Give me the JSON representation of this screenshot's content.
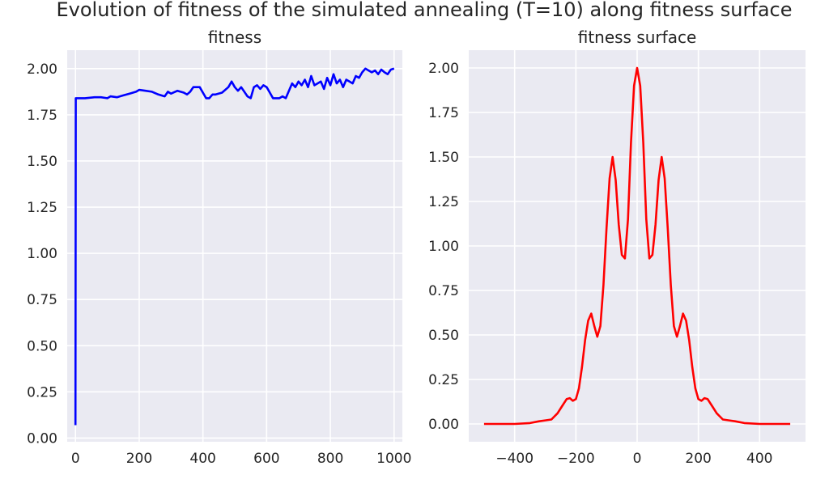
{
  "figure": {
    "suptitle": "Evolution of fitness of the simulated annealing (T=10) along fitness surface"
  },
  "chart_data": [
    {
      "type": "line",
      "title": "fitness",
      "xlabel": "",
      "ylabel": "",
      "xlim": [
        -26,
        1026
      ],
      "ylim": [
        -0.02,
        2.1
      ],
      "xticks": [
        0,
        200,
        400,
        600,
        800,
        1000
      ],
      "xtick_labels": [
        "0",
        "200",
        "400",
        "600",
        "800",
        "1000"
      ],
      "yticks": [
        0.0,
        0.25,
        0.5,
        0.75,
        1.0,
        1.25,
        1.5,
        1.75,
        2.0
      ],
      "ytick_labels": [
        "0.00",
        "0.25",
        "0.50",
        "0.75",
        "1.00",
        "1.25",
        "1.50",
        "1.75",
        "2.00"
      ],
      "grid": true,
      "series": [
        {
          "color": "#0000ff",
          "x": [
            0,
            1,
            10,
            30,
            60,
            80,
            100,
            110,
            130,
            150,
            170,
            190,
            200,
            220,
            240,
            260,
            280,
            290,
            300,
            320,
            340,
            350,
            360,
            370,
            390,
            410,
            420,
            430,
            440,
            460,
            480,
            490,
            500,
            510,
            520,
            540,
            550,
            560,
            570,
            580,
            590,
            600,
            610,
            620,
            640,
            650,
            660,
            670,
            680,
            690,
            700,
            710,
            720,
            730,
            740,
            750,
            760,
            770,
            780,
            790,
            800,
            810,
            820,
            830,
            840,
            850,
            860,
            870,
            880,
            890,
            900,
            910,
            920,
            930,
            940,
            950,
            960,
            970,
            980,
            990,
            1000
          ],
          "y": [
            0.07,
            1.84,
            1.84,
            1.84,
            1.845,
            1.845,
            1.84,
            1.85,
            1.845,
            1.855,
            1.865,
            1.875,
            1.885,
            1.88,
            1.875,
            1.86,
            1.85,
            1.875,
            1.865,
            1.88,
            1.87,
            1.86,
            1.875,
            1.9,
            1.9,
            1.84,
            1.84,
            1.86,
            1.86,
            1.87,
            1.9,
            1.93,
            1.9,
            1.88,
            1.9,
            1.85,
            1.84,
            1.9,
            1.91,
            1.89,
            1.91,
            1.9,
            1.87,
            1.84,
            1.84,
            1.85,
            1.84,
            1.88,
            1.92,
            1.9,
            1.93,
            1.91,
            1.94,
            1.9,
            1.96,
            1.91,
            1.92,
            1.93,
            1.89,
            1.95,
            1.91,
            1.97,
            1.92,
            1.94,
            1.9,
            1.94,
            1.93,
            1.92,
            1.96,
            1.95,
            1.98,
            2.0,
            1.99,
            1.98,
            1.99,
            1.97,
            1.995,
            1.98,
            1.97,
            1.995,
            2.0
          ]
        }
      ]
    },
    {
      "type": "line",
      "title": "fitness surface",
      "xlabel": "",
      "ylabel": "",
      "xlim": [
        -550,
        550
      ],
      "ylim": [
        -0.1,
        2.1
      ],
      "xticks": [
        -400,
        -200,
        0,
        200,
        400
      ],
      "xtick_labels": [
        "−400",
        "−200",
        "0",
        "200",
        "400"
      ],
      "yticks": [
        0.0,
        0.25,
        0.5,
        0.75,
        1.0,
        1.25,
        1.5,
        1.75,
        2.0
      ],
      "ytick_labels": [
        "0.00",
        "0.25",
        "0.50",
        "0.75",
        "1.00",
        "1.25",
        "1.50",
        "1.75",
        "2.00"
      ],
      "grid": true,
      "series": [
        {
          "color": "#ff0000",
          "x": [
            -500,
            -450,
            -400,
            -350,
            -320,
            -300,
            -280,
            -260,
            -245,
            -230,
            -220,
            -210,
            -200,
            -190,
            -180,
            -170,
            -160,
            -150,
            -140,
            -130,
            -120,
            -110,
            -100,
            -90,
            -80,
            -70,
            -60,
            -50,
            -40,
            -30,
            -20,
            -10,
            0,
            10,
            20,
            30,
            40,
            50,
            60,
            70,
            80,
            90,
            100,
            110,
            120,
            130,
            140,
            150,
            160,
            170,
            180,
            190,
            200,
            210,
            220,
            230,
            245,
            260,
            280,
            300,
            320,
            350,
            400,
            450,
            500
          ],
          "y": [
            0.0,
            0.0,
            0.0,
            0.005,
            0.015,
            0.02,
            0.025,
            0.06,
            0.1,
            0.14,
            0.145,
            0.13,
            0.14,
            0.2,
            0.32,
            0.47,
            0.58,
            0.62,
            0.55,
            0.49,
            0.55,
            0.78,
            1.1,
            1.38,
            1.5,
            1.37,
            1.12,
            0.95,
            0.93,
            1.15,
            1.58,
            1.9,
            2.0,
            1.9,
            1.58,
            1.15,
            0.93,
            0.95,
            1.12,
            1.37,
            1.5,
            1.38,
            1.1,
            0.78,
            0.55,
            0.49,
            0.55,
            0.62,
            0.58,
            0.47,
            0.32,
            0.2,
            0.14,
            0.13,
            0.145,
            0.14,
            0.1,
            0.06,
            0.025,
            0.02,
            0.015,
            0.005,
            0.0,
            0.0,
            0.0
          ]
        }
      ]
    }
  ]
}
